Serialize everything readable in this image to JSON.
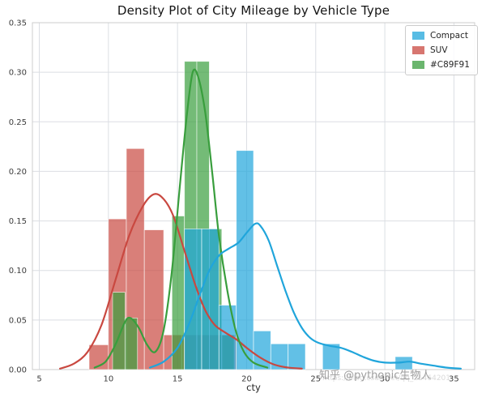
{
  "figure": {
    "background": "#ffffff"
  },
  "chart_data": {
    "type": "histogram+kde",
    "title": "Density Plot of City Mileage by Vehicle Type",
    "xlabel": "cty",
    "ylabel": "",
    "xlim": [
      4.5,
      36.5
    ],
    "ylim": [
      0,
      0.35
    ],
    "xticks": [
      5,
      10,
      15,
      20,
      25,
      30,
      35
    ],
    "yticks": [
      "0.00",
      "0.05",
      "0.10",
      "0.15",
      "0.20",
      "0.25",
      "0.30",
      "0.35"
    ],
    "grid": true,
    "grid_color": "#dbdee3",
    "border_color": "#cccccc",
    "legend": {
      "position": "upper right",
      "entries": [
        {
          "label": "Compact",
          "color": "#20A5DB"
        },
        {
          "label": "SUV",
          "color": "#C94840"
        },
        {
          "label": "#C89F91",
          "color": "#399E3D"
        }
      ]
    },
    "series": [
      {
        "name": "SUV",
        "color": "#C94840",
        "bars": [
          [
            8.6,
            10.0,
            0.025
          ],
          [
            10.0,
            11.3,
            0.152
          ],
          [
            11.3,
            12.6,
            0.223
          ],
          [
            12.6,
            14.0,
            0.141
          ],
          [
            14.0,
            15.3,
            0.035
          ],
          [
            15.3,
            16.7,
            0.035
          ],
          [
            16.7,
            18.0,
            0.035
          ],
          [
            18.0,
            19.3,
            0.035
          ]
        ],
        "kde": [
          [
            6.5,
            0.001
          ],
          [
            7.5,
            0.006
          ],
          [
            8.5,
            0.018
          ],
          [
            9.5,
            0.045
          ],
          [
            10.5,
            0.09
          ],
          [
            11.5,
            0.135
          ],
          [
            12.5,
            0.165
          ],
          [
            13.3,
            0.177
          ],
          [
            14,
            0.172
          ],
          [
            14.7,
            0.155
          ],
          [
            15.5,
            0.12
          ],
          [
            16.3,
            0.085
          ],
          [
            17,
            0.06
          ],
          [
            17.7,
            0.045
          ],
          [
            18.5,
            0.037
          ],
          [
            19.3,
            0.03
          ],
          [
            20,
            0.022
          ],
          [
            21,
            0.012
          ],
          [
            22,
            0.005
          ],
          [
            23,
            0.002
          ],
          [
            24,
            0.001
          ]
        ]
      },
      {
        "name": "#C89F91",
        "color": "#399E3D",
        "bars": [
          [
            10.3,
            11.2,
            0.078
          ],
          [
            11.2,
            12.1,
            0.052
          ],
          [
            14.6,
            15.5,
            0.155
          ],
          [
            15.5,
            16.4,
            0.311
          ],
          [
            16.4,
            17.3,
            0.311
          ],
          [
            17.3,
            18.2,
            0.142
          ],
          [
            18.2,
            19.1,
            0.035
          ]
        ],
        "kde": [
          [
            9,
            0.002
          ],
          [
            9.8,
            0.008
          ],
          [
            10.5,
            0.025
          ],
          [
            11.2,
            0.048
          ],
          [
            11.6,
            0.052
          ],
          [
            12.2,
            0.042
          ],
          [
            12.8,
            0.025
          ],
          [
            13.4,
            0.018
          ],
          [
            14,
            0.04
          ],
          [
            14.6,
            0.1
          ],
          [
            15.2,
            0.19
          ],
          [
            15.7,
            0.26
          ],
          [
            16.1,
            0.3
          ],
          [
            16.5,
            0.295
          ],
          [
            17,
            0.26
          ],
          [
            17.5,
            0.2
          ],
          [
            18,
            0.135
          ],
          [
            18.6,
            0.08
          ],
          [
            19.2,
            0.04
          ],
          [
            19.8,
            0.018
          ],
          [
            20.5,
            0.007
          ],
          [
            21.5,
            0.002
          ]
        ]
      },
      {
        "name": "Compact",
        "color": "#20A5DB",
        "bars": [
          [
            15.5,
            16.75,
            0.142
          ],
          [
            16.75,
            18.0,
            0.142
          ],
          [
            18.0,
            19.25,
            0.065
          ],
          [
            19.25,
            20.5,
            0.221
          ],
          [
            20.5,
            21.75,
            0.039
          ],
          [
            21.75,
            23.0,
            0.026
          ],
          [
            23.0,
            24.25,
            0.026
          ],
          [
            25.5,
            26.75,
            0.026
          ],
          [
            30.75,
            32.0,
            0.013
          ]
        ],
        "kde": [
          [
            13,
            0.002
          ],
          [
            14,
            0.008
          ],
          [
            15,
            0.022
          ],
          [
            15.8,
            0.045
          ],
          [
            16.6,
            0.075
          ],
          [
            17.3,
            0.1
          ],
          [
            18,
            0.115
          ],
          [
            18.7,
            0.122
          ],
          [
            19.4,
            0.128
          ],
          [
            20,
            0.138
          ],
          [
            20.6,
            0.147
          ],
          [
            21,
            0.145
          ],
          [
            21.6,
            0.13
          ],
          [
            22.2,
            0.105
          ],
          [
            22.8,
            0.08
          ],
          [
            23.4,
            0.058
          ],
          [
            24,
            0.042
          ],
          [
            24.6,
            0.032
          ],
          [
            25.2,
            0.027
          ],
          [
            26,
            0.024
          ],
          [
            26.8,
            0.022
          ],
          [
            27.6,
            0.018
          ],
          [
            28.4,
            0.013
          ],
          [
            29.2,
            0.009
          ],
          [
            30,
            0.007
          ],
          [
            31,
            0.007
          ],
          [
            31.8,
            0.008
          ],
          [
            32.6,
            0.006
          ],
          [
            33.5,
            0.004
          ],
          [
            34.5,
            0.002
          ],
          [
            35.5,
            0.001
          ]
        ]
      }
    ]
  },
  "watermark": {
    "main": "知乎 @pythonic生物人",
    "sub": "https://blog.csdn.net/qq_21464201"
  }
}
